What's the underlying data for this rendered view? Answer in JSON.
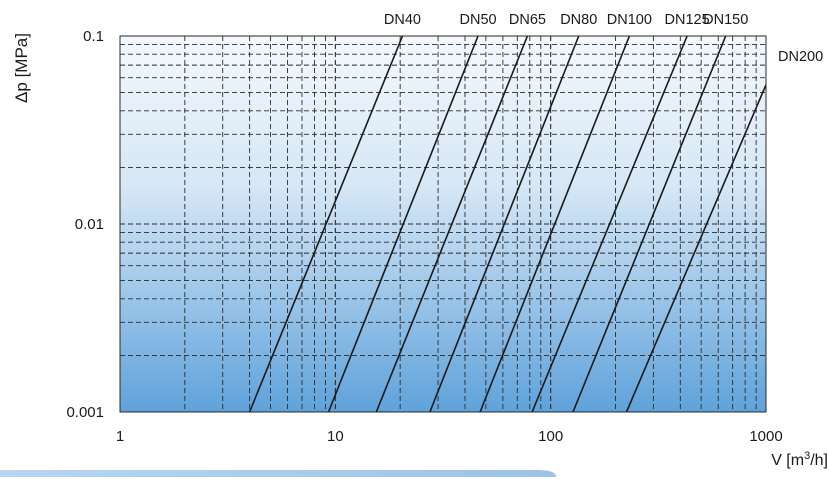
{
  "chart_data": {
    "type": "line",
    "title": "",
    "xlabel": "V [m³/h]",
    "ylabel": "Δp [MPa]",
    "x_scale": "log",
    "y_scale": "log",
    "xlim": [
      1,
      1000
    ],
    "ylim": [
      0.001,
      0.1
    ],
    "grid": true,
    "x_tick_labels": [
      "1",
      "10",
      "100",
      "1000"
    ],
    "y_tick_labels": [
      "0.001",
      "0.01",
      "0.1"
    ],
    "series": [
      {
        "name": "DN40",
        "x": [
          4.0,
          20.5
        ],
        "y": [
          0.001,
          0.1
        ]
      },
      {
        "name": "DN50",
        "x": [
          9.3,
          46
        ],
        "y": [
          0.001,
          0.1
        ]
      },
      {
        "name": "DN65",
        "x": [
          15.5,
          78
        ],
        "y": [
          0.001,
          0.1
        ]
      },
      {
        "name": "DN80",
        "x": [
          27.5,
          135
        ],
        "y": [
          0.001,
          0.1
        ]
      },
      {
        "name": "DN100",
        "x": [
          47,
          232
        ],
        "y": [
          0.001,
          0.1
        ]
      },
      {
        "name": "DN125",
        "x": [
          82,
          430
        ],
        "y": [
          0.001,
          0.1
        ]
      },
      {
        "name": "DN150",
        "x": [
          127,
          650
        ],
        "y": [
          0.001,
          0.1
        ]
      },
      {
        "name": "DN200",
        "x": [
          225,
          1000
        ],
        "y": [
          0.001,
          0.055
        ]
      }
    ],
    "colors": {
      "gradient_top": "#f3f8fd",
      "gradient_bottom": "#5fa2da",
      "line": "#1a1a1a",
      "grid": "#2a2a2a",
      "caption_bar": "#a9cbe9"
    }
  }
}
